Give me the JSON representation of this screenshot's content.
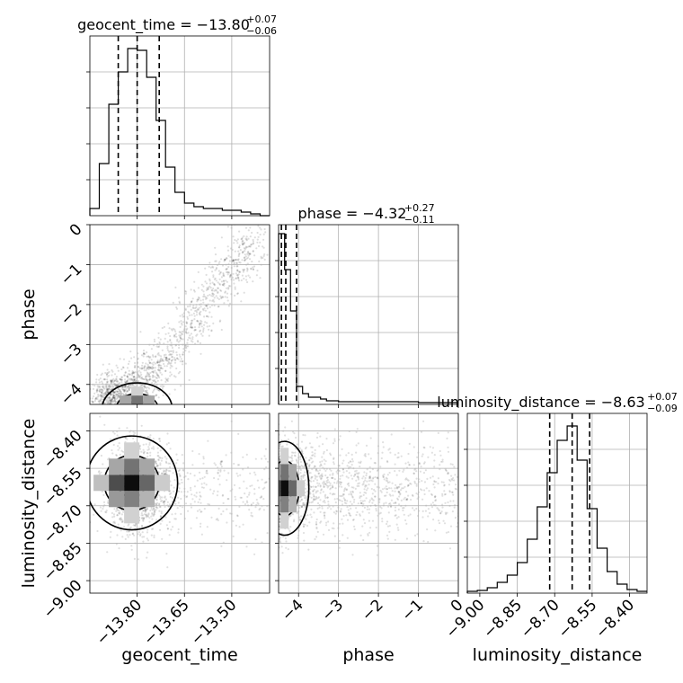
{
  "chart_data": [
    {
      "type": "histogram",
      "panel": "geocent_time-marginal",
      "title": {
        "main": "geocent_time = −13.80",
        "plus": "+0.07",
        "minus": "−0.06"
      },
      "xlim": [
        -13.95,
        -13.38
      ],
      "bin_edges": [
        -13.95,
        -13.92,
        -13.89,
        -13.86,
        -13.83,
        -13.8,
        -13.77,
        -13.74,
        -13.71,
        -13.68,
        -13.65,
        -13.62,
        -13.59,
        -13.56,
        -13.53,
        -13.5,
        -13.47,
        -13.44,
        -13.41,
        -13.38
      ],
      "heights": [
        0.04,
        0.29,
        0.62,
        0.8,
        0.93,
        0.92,
        0.77,
        0.53,
        0.27,
        0.13,
        0.07,
        0.05,
        0.04,
        0.04,
        0.03,
        0.03,
        0.02,
        0.01,
        0.0
      ],
      "quantiles": [
        -13.86,
        -13.8,
        -13.73
      ],
      "grid": true
    },
    {
      "type": "scatter",
      "panel": "phase-vs-geocent_time",
      "x_param": "geocent_time",
      "y_param": "phase",
      "xlim": [
        -13.95,
        -13.38
      ],
      "ylim": [
        -4.5,
        0.0
      ],
      "yticks": [
        "−4",
        "−3",
        "−2",
        "−1",
        "0"
      ],
      "ylabel": "phase",
      "trend": [
        [
          -13.9,
          -4.35
        ],
        [
          -13.8,
          -4.05
        ],
        [
          -13.7,
          -3.3
        ],
        [
          -13.6,
          -2.1
        ],
        [
          -13.5,
          -1.1
        ],
        [
          -13.42,
          -0.3
        ]
      ],
      "density_peak": [
        -13.8,
        -4.3
      ],
      "grid": true
    },
    {
      "type": "histogram",
      "panel": "phase-marginal",
      "title": {
        "main": "phase = −4.32",
        "plus": "+0.27",
        "minus": "−0.11"
      },
      "xlim": [
        -4.5,
        0.0
      ],
      "bin_edges": [
        -4.5,
        -4.35,
        -4.2,
        -4.05,
        -3.9,
        -3.75,
        -3.6,
        -3.45,
        -3.3,
        -3.0,
        -2.5,
        -2.0,
        -1.5,
        -1.0,
        -0.5,
        0.0
      ],
      "heights": [
        0.95,
        0.75,
        0.52,
        0.1,
        0.06,
        0.04,
        0.04,
        0.03,
        0.02,
        0.015,
        0.015,
        0.015,
        0.015,
        0.01,
        0.01
      ],
      "quantiles": [
        -4.43,
        -4.32,
        -4.05
      ],
      "grid": true
    },
    {
      "type": "scatter",
      "panel": "luminosity_distance-vs-geocent_time",
      "x_param": "geocent_time",
      "y_param": "luminosity_distance",
      "xlim": [
        -13.95,
        -13.38
      ],
      "ylim": [
        -9.05,
        -8.33
      ],
      "xticks": [
        "−13.80",
        "−13.65",
        "−13.50"
      ],
      "yticks": [
        "−9.00",
        "−8.85",
        "−8.70",
        "−8.55",
        "−8.40"
      ],
      "xlabel": "geocent_time",
      "ylabel": "luminosity_distance",
      "density_peak": [
        -13.8,
        -8.63
      ],
      "grid": true
    },
    {
      "type": "scatter",
      "panel": "luminosity_distance-vs-phase",
      "x_param": "phase",
      "y_param": "luminosity_distance",
      "xlim": [
        -4.5,
        0.0
      ],
      "ylim": [
        -9.05,
        -8.33
      ],
      "xticks": [
        "−4",
        "−3",
        "−2",
        "−1",
        "0"
      ],
      "xlabel": "phase",
      "density_peak": [
        -4.35,
        -8.63
      ],
      "grid": true
    },
    {
      "type": "histogram",
      "panel": "luminosity_distance-marginal",
      "title": {
        "main": "luminosity_distance = −8.63",
        "plus": "+0.07",
        "minus": "−0.09"
      },
      "xlim": [
        -9.05,
        -8.33
      ],
      "bin_edges": [
        -9.05,
        -9.01,
        -8.97,
        -8.93,
        -8.89,
        -8.85,
        -8.81,
        -8.77,
        -8.73,
        -8.69,
        -8.65,
        -8.61,
        -8.57,
        -8.53,
        -8.49,
        -8.45,
        -8.41,
        -8.37,
        -8.33
      ],
      "heights": [
        0.01,
        0.015,
        0.03,
        0.06,
        0.1,
        0.17,
        0.3,
        0.48,
        0.67,
        0.85,
        0.93,
        0.74,
        0.47,
        0.25,
        0.12,
        0.05,
        0.02,
        0.01
      ],
      "quantiles": [
        -8.72,
        -8.63,
        -8.56
      ],
      "xticks": [
        "−9.00",
        "−8.85",
        "−8.70",
        "−8.55",
        "−8.40"
      ],
      "xlabel": "luminosity_distance",
      "grid": true
    }
  ]
}
